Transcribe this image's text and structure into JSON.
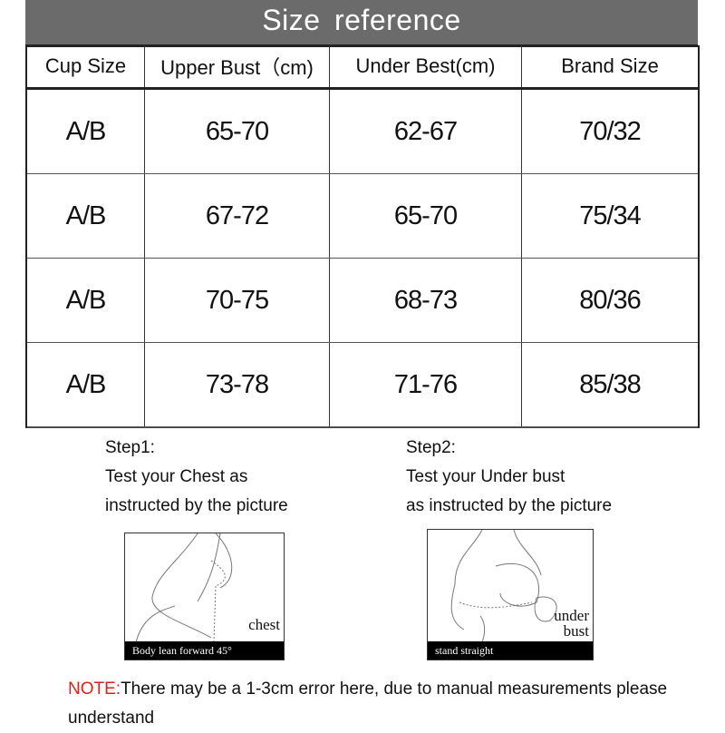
{
  "title": "Size  reference",
  "table": {
    "headers": [
      "Cup Size",
      "Upper Bust（cm)",
      "Under Best(cm)",
      "Brand Size"
    ],
    "rows": [
      [
        "A/B",
        "65-70",
        "62-67",
        "70/32"
      ],
      [
        "A/B",
        "67-72",
        "65-70",
        "75/34"
      ],
      [
        "A/B",
        "70-75",
        "68-73",
        "80/36"
      ],
      [
        "A/B",
        "73-78",
        "71-76",
        "85/38"
      ]
    ]
  },
  "steps": [
    {
      "label": "Step1:",
      "line1": "Test your Chest as",
      "line2": "instructed by the picture",
      "illustration_label": "chest",
      "caption": "Body lean forward 45°"
    },
    {
      "label": "Step2:",
      "line1": "Test your Under bust",
      "line2": "as instructed by the picture",
      "illustration_label": "under bust",
      "caption": "stand straight"
    }
  ],
  "note": {
    "prefix": "NOTE:",
    "text": "There may be a 1-3cm error here, due to manual measurements please understand",
    "accent": "#e0201a"
  }
}
